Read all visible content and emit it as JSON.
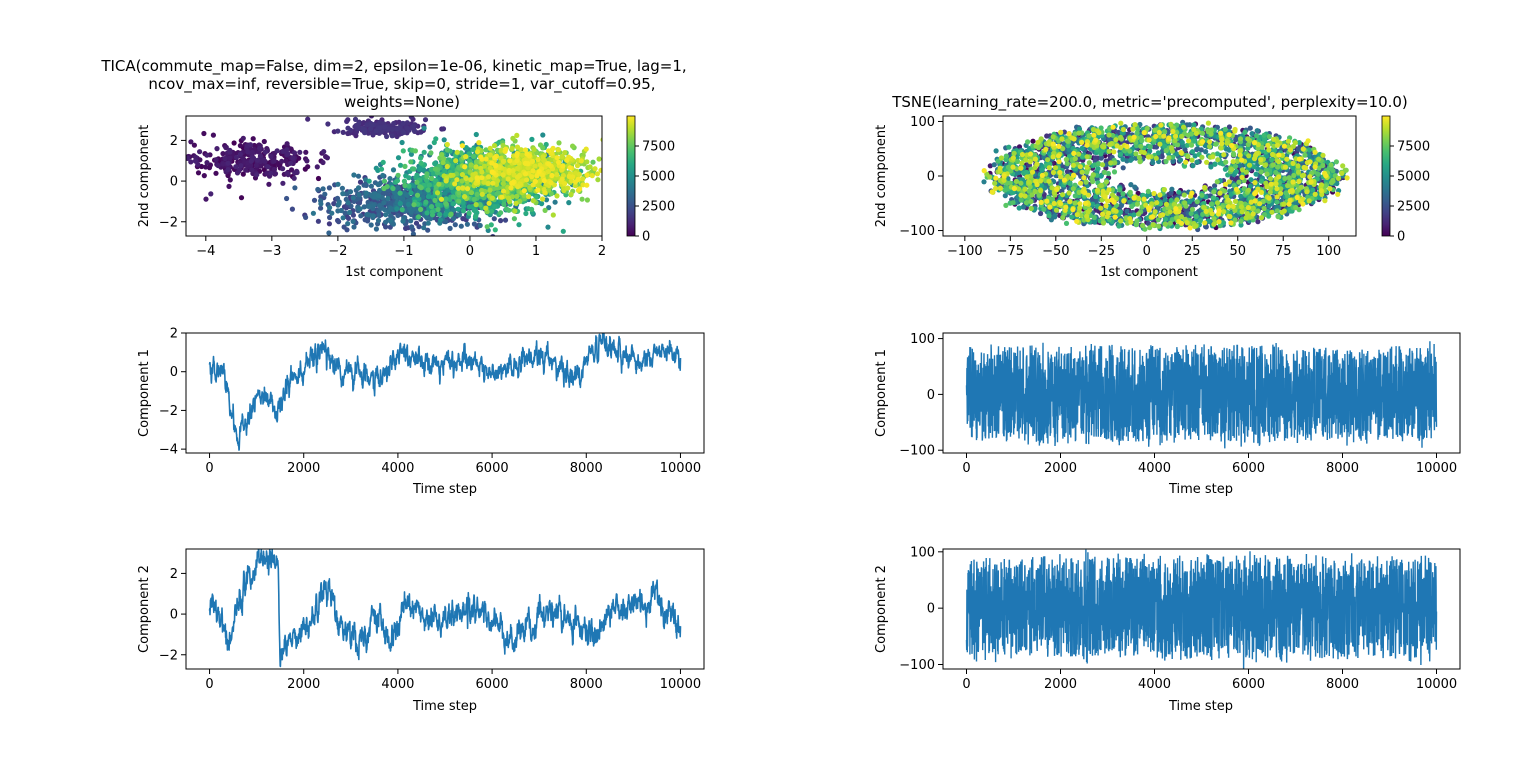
{
  "chart_data": [
    {
      "id": "tica-scatter",
      "type": "scatter",
      "title_lines": [
        "TICA(commute_map=False, dim=2, epsilon=1e-06, kinetic_map=True, lag=1,",
        "ncov_max=inf, reversible=True, skip=0, stride=1, var_cutoff=0.95,",
        "weights=None)"
      ],
      "xlabel": "1st component",
      "ylabel": "2nd component",
      "xlim": [
        -4.3,
        2.0
      ],
      "ylim": [
        -2.7,
        3.2
      ],
      "xticks": [
        -4,
        -3,
        -2,
        -1,
        0,
        1,
        2
      ],
      "yticks": [
        -2,
        0,
        2
      ],
      "colorbar": {
        "colormap": "viridis",
        "range": [
          0,
          10000
        ],
        "ticks": [
          0,
          2500,
          5000,
          7500
        ]
      },
      "points_description_clusters": [
        {
          "t_range": [
            0,
            1000
          ],
          "center": [
            -3.3,
            1.0
          ],
          "spread": [
            0.45,
            0.45
          ]
        },
        {
          "t_range": [
            1000,
            1600
          ],
          "center": [
            -1.3,
            2.6
          ],
          "spread": [
            0.3,
            0.2
          ]
        },
        {
          "t_range": [
            1600,
            4000
          ],
          "center": [
            -0.9,
            -1.0
          ],
          "spread": [
            0.6,
            0.6
          ]
        },
        {
          "t_range": [
            4000,
            7500
          ],
          "center": [
            0.1,
            0.0
          ],
          "spread": [
            0.55,
            0.8
          ]
        },
        {
          "t_range": [
            7500,
            10000
          ],
          "center": [
            0.8,
            0.5
          ],
          "spread": [
            0.5,
            0.6
          ]
        }
      ]
    },
    {
      "id": "tsne-scatter",
      "type": "scatter",
      "title_lines": [
        "TSNE(learning_rate=200.0, metric='precomputed', perplexity=10.0)"
      ],
      "xlabel": "1st component",
      "ylabel": "2nd component",
      "xlim": [
        -112,
        115
      ],
      "ylim": [
        -110,
        110
      ],
      "xticks": [
        -100,
        -75,
        -50,
        -25,
        0,
        25,
        50,
        75,
        100
      ],
      "yticks": [
        -100,
        0,
        100
      ],
      "colorbar": {
        "colormap": "viridis",
        "range": [
          0,
          10000
        ],
        "ticks": [
          0,
          2500,
          5000,
          7500
        ]
      },
      "points_description_ring": {
        "center": [
          10,
          0
        ],
        "radius_x": [
          30,
          95
        ],
        "radius_y": [
          20,
          95
        ]
      }
    },
    {
      "id": "tica-component1",
      "type": "line",
      "xlabel": "Time step",
      "ylabel": "Component 1",
      "xlim": [
        -500,
        10500
      ],
      "ylim": [
        -4.2,
        2.0
      ],
      "xticks": [
        0,
        2000,
        4000,
        6000,
        8000,
        10000
      ],
      "yticks": [
        -4,
        -2,
        0,
        2
      ],
      "color": "#1f77b4",
      "keypoints": [
        [
          0,
          0.3
        ],
        [
          200,
          0.5
        ],
        [
          400,
          -1.0
        ],
        [
          600,
          -3.5
        ],
        [
          800,
          -2.5
        ],
        [
          1000,
          -1.2
        ],
        [
          1300,
          -1.3
        ],
        [
          1500,
          -2.0
        ],
        [
          1700,
          -0.5
        ],
        [
          2000,
          0.2
        ],
        [
          2400,
          1.2
        ],
        [
          2800,
          0.2
        ],
        [
          3200,
          0.0
        ],
        [
          3600,
          -0.5
        ],
        [
          4000,
          1.0
        ],
        [
          4500,
          0.7
        ],
        [
          5000,
          0.3
        ],
        [
          5500,
          0.6
        ],
        [
          6000,
          -0.1
        ],
        [
          6500,
          0.4
        ],
        [
          7000,
          0.9
        ],
        [
          7500,
          0.2
        ],
        [
          7800,
          0.0
        ],
        [
          8200,
          1.2
        ],
        [
          8800,
          0.8
        ],
        [
          9200,
          0.5
        ],
        [
          9700,
          1.4
        ],
        [
          10000,
          0.8
        ]
      ],
      "noise": 0.35,
      "n_points": 10000
    },
    {
      "id": "tsne-component1",
      "type": "line",
      "xlabel": "Time step",
      "ylabel": "Component 1",
      "xlim": [
        -500,
        10500
      ],
      "ylim": [
        -105,
        110
      ],
      "xticks": [
        0,
        2000,
        4000,
        6000,
        8000,
        10000
      ],
      "yticks": [
        -100,
        0,
        100
      ],
      "color": "#1f77b4",
      "band": [
        -85,
        85
      ],
      "n_points": 10000
    },
    {
      "id": "tica-component2",
      "type": "line",
      "xlabel": "Time step",
      "ylabel": "Component 2",
      "xlim": [
        -500,
        10500
      ],
      "ylim": [
        -2.7,
        3.2
      ],
      "xticks": [
        0,
        2000,
        4000,
        6000,
        8000,
        10000
      ],
      "yticks": [
        -2,
        0,
        2
      ],
      "color": "#1f77b4",
      "keypoints": [
        [
          0,
          0.5
        ],
        [
          200,
          -0.5
        ],
        [
          400,
          -1.5
        ],
        [
          600,
          0.5
        ],
        [
          800,
          1.5
        ],
        [
          1000,
          2.2
        ],
        [
          1300,
          2.8
        ],
        [
          1450,
          2.8
        ],
        [
          1500,
          -2.0
        ],
        [
          1800,
          -1.0
        ],
        [
          2200,
          0.0
        ],
        [
          2500,
          1.0
        ],
        [
          2800,
          -0.5
        ],
        [
          3200,
          -1.5
        ],
        [
          3500,
          0.0
        ],
        [
          3900,
          -1.5
        ],
        [
          4100,
          0.5
        ],
        [
          4500,
          0.0
        ],
        [
          5000,
          -0.5
        ],
        [
          5500,
          0.5
        ],
        [
          6000,
          -0.5
        ],
        [
          6500,
          -1.5
        ],
        [
          7000,
          0.0
        ],
        [
          7500,
          0.0
        ],
        [
          8000,
          -1.0
        ],
        [
          8500,
          0.0
        ],
        [
          9000,
          0.5
        ],
        [
          9500,
          1.0
        ],
        [
          10000,
          -0.5
        ]
      ],
      "noise": 0.4,
      "n_points": 10000
    },
    {
      "id": "tsne-component2",
      "type": "line",
      "xlabel": "Time step",
      "ylabel": "Component 2",
      "xlim": [
        -500,
        10500
      ],
      "ylim": [
        -108,
        105
      ],
      "xticks": [
        0,
        2000,
        4000,
        6000,
        8000,
        10000
      ],
      "yticks": [
        -100,
        0,
        100
      ],
      "color": "#1f77b4",
      "band": [
        -90,
        90
      ],
      "n_points": 10000
    }
  ]
}
